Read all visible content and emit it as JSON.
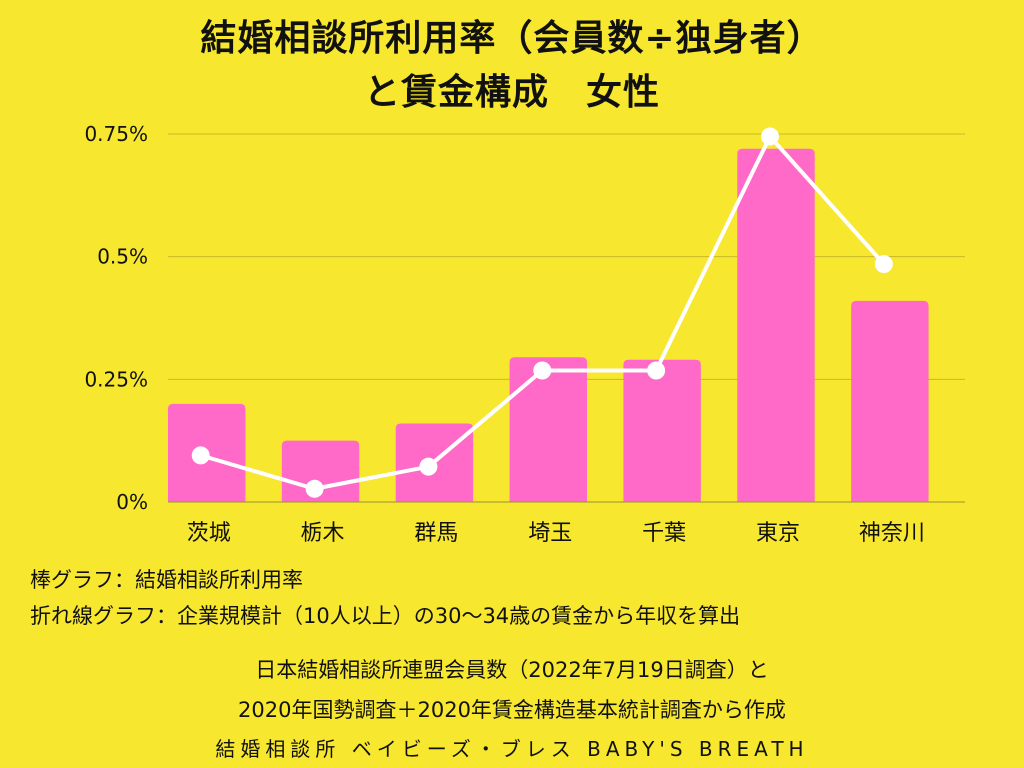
{
  "title_lines": [
    "結婚相談所利用率（会員数÷独身者）",
    "と賃金構成　女性"
  ],
  "notes": [
    "棒グラフ：結婚相談所利用率",
    "折れ線グラフ：企業規模計（10人以上）の30〜34歳の賃金から年収を算出"
  ],
  "sources": [
    "日本結婚相談所連盟会員数（2022年7月19日調査）と",
    "2020年国勢調査＋2020年賃金構造基本統計調査から作成"
  ],
  "brand": "結婚相談所 ベイビーズ・ブレス BABY'S BREATH",
  "colors": {
    "bar": "#FF69C8",
    "line": "#FFFFFF",
    "grid": "#C8B92A",
    "background": "#F7E72F"
  },
  "chart_data": {
    "type": "bar",
    "title": "結婚相談所利用率（会員数÷独身者）と賃金構成　女性",
    "categories": [
      "茨城",
      "栃木",
      "群馬",
      "埼玉",
      "千葉",
      "東京",
      "神奈川"
    ],
    "ylim": [
      0,
      0.75
    ],
    "yticks": [
      0,
      0.25,
      0.5,
      0.75
    ],
    "ytick_labels": [
      "0%",
      "0.25%",
      "0.5%",
      "0.75%"
    ],
    "grid": true,
    "series": [
      {
        "kind": "bar",
        "values": [
          0.2,
          0.125,
          0.16,
          0.295,
          0.29,
          0.72,
          0.41
        ]
      },
      {
        "kind": "line",
        "values": [
          0.095,
          0.027,
          0.072,
          0.268,
          0.268,
          0.745,
          0.485
        ]
      }
    ]
  }
}
